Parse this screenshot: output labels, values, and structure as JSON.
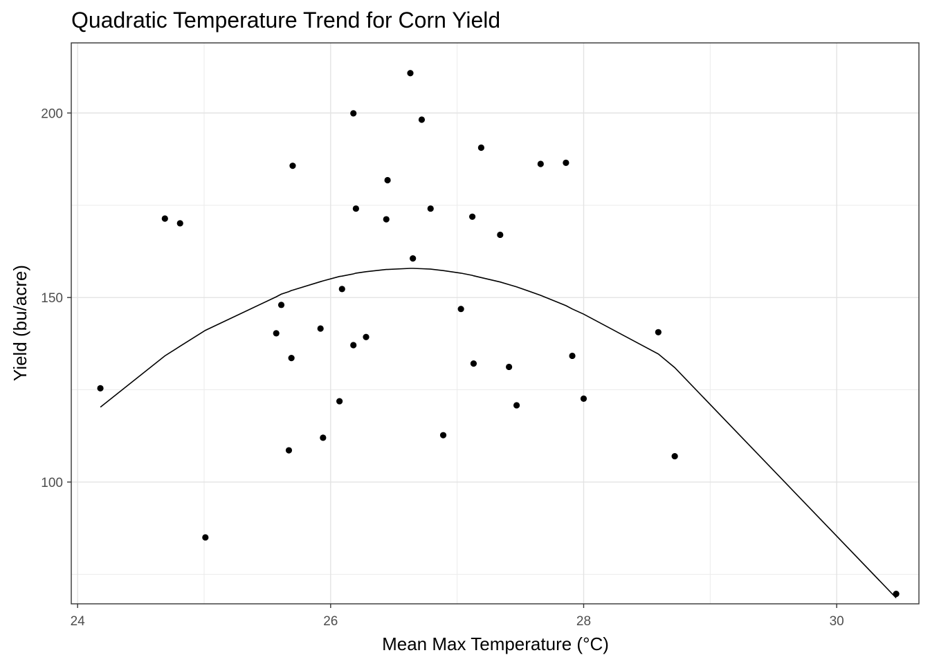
{
  "chart_data": {
    "type": "scatter",
    "title": "Quadratic Temperature Trend for Corn Yield",
    "xlabel": "Mean Max Temperature (°C)",
    "ylabel": "Yield (bu/acre)",
    "xlim": [
      23.95,
      30.65
    ],
    "ylim": [
      67,
      219
    ],
    "x_ticks": [
      24,
      26,
      28,
      30
    ],
    "y_ticks": [
      100,
      150,
      200
    ],
    "x_minor": [
      25,
      27,
      29
    ],
    "y_minor": [
      75,
      125,
      175
    ],
    "grid": true,
    "points": [
      {
        "x": 24.18,
        "y": 125.4
      },
      {
        "x": 24.69,
        "y": 171.4
      },
      {
        "x": 24.81,
        "y": 170.1
      },
      {
        "x": 25.01,
        "y": 85.0
      },
      {
        "x": 25.57,
        "y": 140.3
      },
      {
        "x": 25.61,
        "y": 148.0
      },
      {
        "x": 25.67,
        "y": 108.6
      },
      {
        "x": 25.69,
        "y": 133.6
      },
      {
        "x": 25.7,
        "y": 185.7
      },
      {
        "x": 25.92,
        "y": 141.6
      },
      {
        "x": 25.94,
        "y": 112.0
      },
      {
        "x": 26.07,
        "y": 121.9
      },
      {
        "x": 26.09,
        "y": 152.3
      },
      {
        "x": 26.18,
        "y": 137.1
      },
      {
        "x": 26.18,
        "y": 199.9
      },
      {
        "x": 26.2,
        "y": 174.1
      },
      {
        "x": 26.28,
        "y": 139.3
      },
      {
        "x": 26.44,
        "y": 171.2
      },
      {
        "x": 26.45,
        "y": 181.8
      },
      {
        "x": 26.63,
        "y": 210.8
      },
      {
        "x": 26.65,
        "y": 160.6
      },
      {
        "x": 26.72,
        "y": 198.2
      },
      {
        "x": 26.79,
        "y": 174.1
      },
      {
        "x": 26.89,
        "y": 112.7
      },
      {
        "x": 27.03,
        "y": 146.9
      },
      {
        "x": 27.12,
        "y": 171.9
      },
      {
        "x": 27.13,
        "y": 132.1
      },
      {
        "x": 27.19,
        "y": 190.6
      },
      {
        "x": 27.34,
        "y": 167.0
      },
      {
        "x": 27.41,
        "y": 131.2
      },
      {
        "x": 27.47,
        "y": 120.8
      },
      {
        "x": 27.66,
        "y": 186.2
      },
      {
        "x": 27.86,
        "y": 186.5
      },
      {
        "x": 27.91,
        "y": 134.2
      },
      {
        "x": 28.0,
        "y": 122.6
      },
      {
        "x": 28.59,
        "y": 140.6
      },
      {
        "x": 28.72,
        "y": 107.0
      },
      {
        "x": 30.47,
        "y": 69.7
      }
    ],
    "series": [
      {
        "type": "line",
        "x": [
          24.18,
          24.69,
          24.81,
          25.01,
          25.57,
          25.61,
          25.67,
          25.69,
          25.7,
          25.92,
          25.94,
          26.07,
          26.09,
          26.18,
          26.2,
          26.28,
          26.44,
          26.45,
          26.63,
          26.65,
          26.72,
          26.79,
          26.89,
          27.03,
          27.12,
          27.13,
          27.19,
          27.34,
          27.41,
          27.47,
          27.66,
          27.86,
          27.91,
          28.0,
          28.59,
          28.72,
          30.47
        ],
        "y": [
          120.3,
          134.2,
          136.8,
          141.1,
          150.2,
          150.9,
          151.6,
          151.9,
          152.0,
          154.3,
          154.5,
          155.7,
          155.8,
          156.4,
          156.6,
          157.0,
          157.6,
          157.6,
          157.9,
          157.9,
          157.8,
          157.7,
          157.3,
          156.6,
          156.0,
          155.9,
          155.4,
          154.2,
          153.5,
          152.9,
          150.6,
          147.8,
          146.9,
          145.5,
          134.7,
          131.0,
          68.6
        ]
      }
    ]
  }
}
